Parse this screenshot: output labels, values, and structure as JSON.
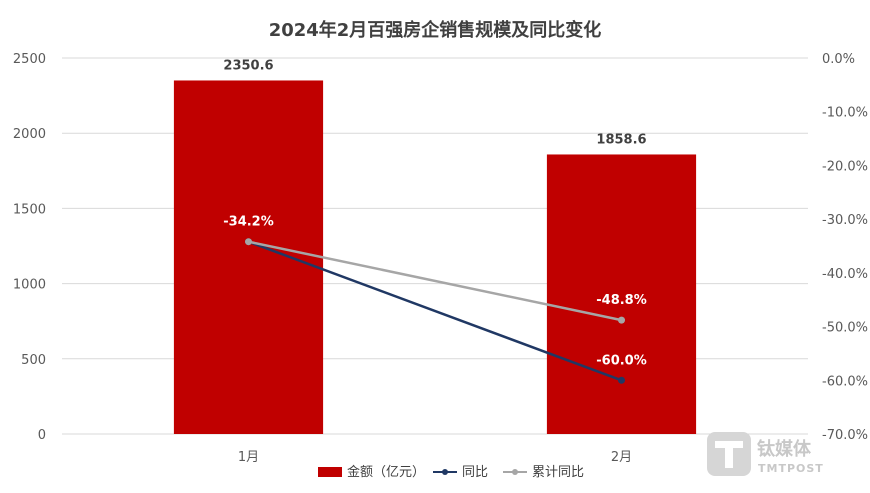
{
  "chart_data": {
    "type": "bar",
    "title": "2024年2月百强房企销售规模及同比变化",
    "categories": [
      "1月",
      "2月"
    ],
    "ylim": [
      0,
      2500
    ],
    "yticks": [
      0,
      500,
      1000,
      1500,
      2000,
      2500
    ],
    "y2lim": [
      -70,
      0
    ],
    "y2ticks": [
      "0.0%",
      "-10.0%",
      "-20.0%",
      "-30.0%",
      "-40.0%",
      "-50.0%",
      "-60.0%",
      "-70.0%"
    ],
    "y2tick_values": [
      0,
      -10,
      -20,
      -30,
      -40,
      -50,
      -60,
      -70
    ],
    "grid": true,
    "legend_position": "bottom",
    "series": [
      {
        "name": "金额（亿元）",
        "type": "bar",
        "axis": "left",
        "color": "#c00000",
        "values": [
          2350.6,
          1858.6
        ],
        "labels": [
          "2350.6",
          "1858.6"
        ]
      },
      {
        "name": "同比",
        "type": "line",
        "axis": "right",
        "color": "#203864",
        "values": [
          -34.2,
          -60.0
        ],
        "labels": [
          "-34.2%",
          "-60.0%"
        ]
      },
      {
        "name": "累计同比",
        "type": "line",
        "axis": "right",
        "color": "#a6a6a6",
        "values": [
          -34.2,
          -48.8
        ],
        "labels": [
          "",
          "-48.8%"
        ]
      }
    ]
  },
  "watermark": {
    "icon": "tmtpost-logo-icon",
    "text": "钛媒体",
    "sub": "TMTPOST"
  }
}
